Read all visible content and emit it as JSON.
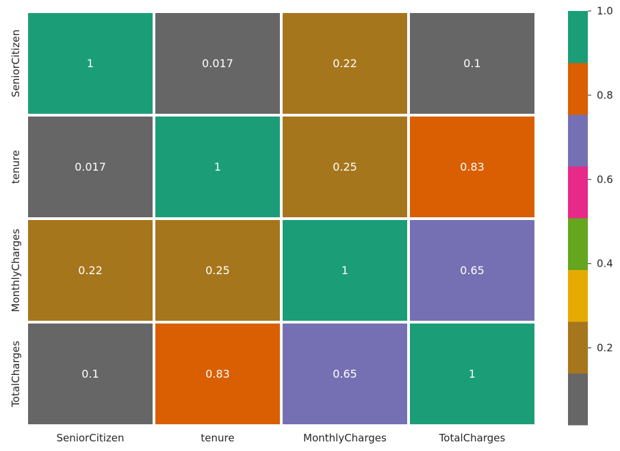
{
  "chart_data": {
    "type": "heatmap",
    "title": "",
    "xlabel": "",
    "ylabel": "",
    "row_labels": [
      "SeniorCitizen",
      "tenure",
      "MonthlyCharges",
      "TotalCharges"
    ],
    "col_labels": [
      "SeniorCitizen",
      "tenure",
      "MonthlyCharges",
      "TotalCharges"
    ],
    "values": [
      [
        1,
        0.017,
        0.22,
        0.1
      ],
      [
        0.017,
        1,
        0.25,
        0.83
      ],
      [
        0.22,
        0.25,
        1,
        0.65
      ],
      [
        0.1,
        0.83,
        0.65,
        1
      ]
    ],
    "cell_labels": [
      [
        "1",
        "0.017",
        "0.22",
        "0.1"
      ],
      [
        "0.017",
        "1",
        "0.25",
        "0.83"
      ],
      [
        "0.22",
        "0.25",
        "1",
        "0.65"
      ],
      [
        "0.1",
        "0.83",
        "0.65",
        "1"
      ]
    ],
    "annotation_color": "#ffffff",
    "colormap": {
      "name": "Dark2",
      "vmin": 0.017,
      "vmax": 1.0,
      "colors": [
        "#666666",
        "#a6761d",
        "#e6ab02",
        "#66a61e",
        "#e7298a",
        "#7570b3",
        "#d95f02",
        "#1b9e77"
      ]
    },
    "colorbar": {
      "ticks": [
        0.2,
        0.4,
        0.6,
        0.8,
        1.0
      ],
      "tick_labels": [
        "0.2",
        "0.4",
        "0.6",
        "0.8",
        "1.0"
      ]
    },
    "grid": false
  }
}
